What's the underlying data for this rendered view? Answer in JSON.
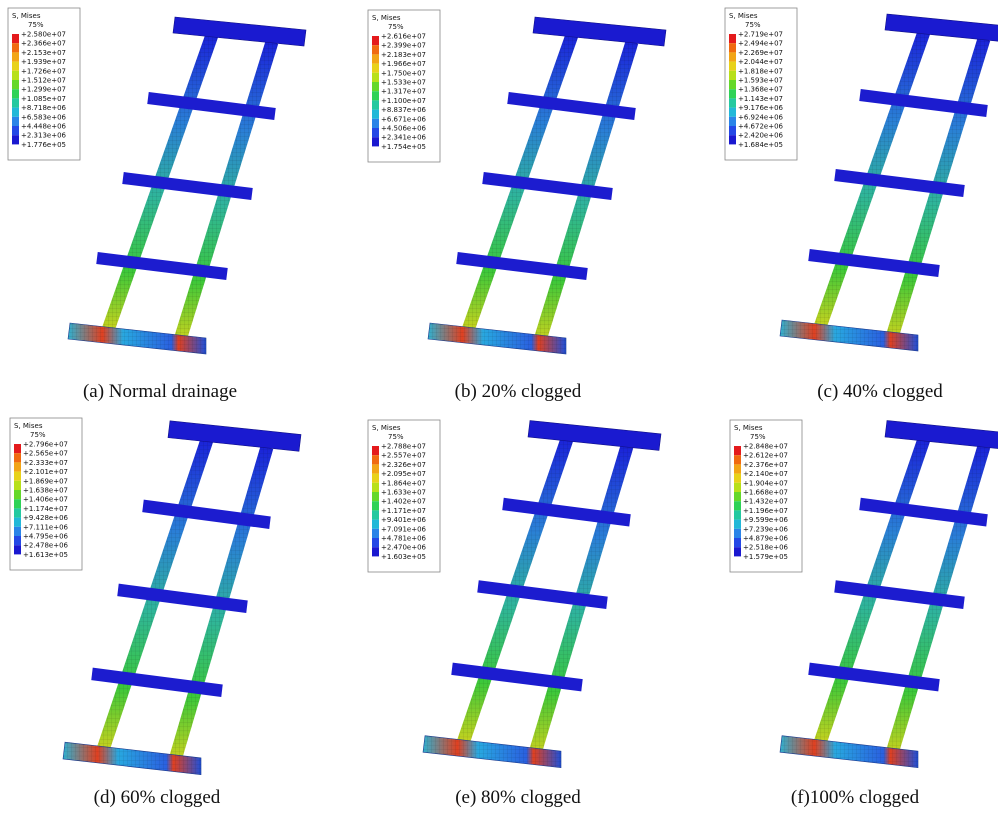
{
  "panels": [
    {
      "legend": {
        "title": "S, Mises",
        "subtitle": "75%",
        "labels": [
          "+2.580e+07",
          "+2.366e+07",
          "+2.153e+07",
          "+1.939e+07",
          "+1.726e+07",
          "+1.512e+07",
          "+1.299e+07",
          "+1.085e+07",
          "+8.718e+06",
          "+6.583e+06",
          "+4.448e+06",
          "+2.313e+06",
          "+1.776e+05"
        ]
      },
      "caption": "(a) Normal drainage"
    },
    {
      "legend": {
        "title": "S, Mises",
        "subtitle": "75%",
        "labels": [
          "+2.616e+07",
          "+2.399e+07",
          "+2.183e+07",
          "+1.966e+07",
          "+1.750e+07",
          "+1.533e+07",
          "+1.317e+07",
          "+1.100e+07",
          "+8.837e+06",
          "+6.671e+06",
          "+4.506e+06",
          "+2.341e+06",
          "+1.754e+05"
        ]
      },
      "caption": "(b) 20% clogged"
    },
    {
      "legend": {
        "title": "S, Mises",
        "subtitle": "75%",
        "labels": [
          "+2.719e+07",
          "+2.494e+07",
          "+2.269e+07",
          "+2.044e+07",
          "+1.818e+07",
          "+1.593e+07",
          "+1.368e+07",
          "+1.143e+07",
          "+9.176e+06",
          "+6.924e+06",
          "+4.672e+06",
          "+2.420e+06",
          "+1.684e+05"
        ]
      },
      "caption": "(c) 40% clogged"
    },
    {
      "legend": {
        "title": "S, Mises",
        "subtitle": "75%",
        "labels": [
          "+2.796e+07",
          "+2.565e+07",
          "+2.333e+07",
          "+2.101e+07",
          "+1.869e+07",
          "+1.638e+07",
          "+1.406e+07",
          "+1.174e+07",
          "+9.428e+06",
          "+7.111e+06",
          "+4.795e+06",
          "+2.478e+06",
          "+1.613e+05"
        ]
      },
      "caption": "(d) 60% clogged"
    },
    {
      "legend": {
        "title": "S, Mises",
        "subtitle": "75%",
        "labels": [
          "+2.788e+07",
          "+2.557e+07",
          "+2.326e+07",
          "+2.095e+07",
          "+1.864e+07",
          "+1.633e+07",
          "+1.402e+07",
          "+1.171e+07",
          "+9.401e+06",
          "+7.091e+06",
          "+4.781e+06",
          "+2.470e+06",
          "+1.603e+05"
        ]
      },
      "caption": "(e) 80% clogged"
    },
    {
      "legend": {
        "title": "S, Mises",
        "subtitle": "75%",
        "labels": [
          "+2.848e+07",
          "+2.612e+07",
          "+2.376e+07",
          "+2.140e+07",
          "+1.904e+07",
          "+1.668e+07",
          "+1.432e+07",
          "+1.196e+07",
          "+9.599e+06",
          "+7.239e+06",
          "+4.879e+06",
          "+2.518e+06",
          "+1.579e+05"
        ]
      },
      "caption": "(f)100% clogged"
    }
  ]
}
